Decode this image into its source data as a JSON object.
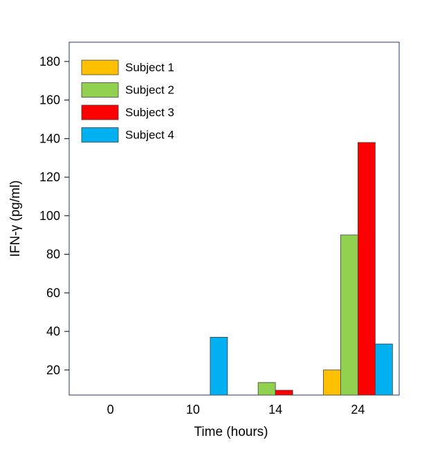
{
  "chart_data": {
    "type": "bar",
    "title": "",
    "xlabel": "Time (hours)",
    "ylabel": "IFN-γ (pg/ml)",
    "categories": [
      "0",
      "10",
      "14",
      "24"
    ],
    "ylim": [
      7,
      190
    ],
    "yticks": [
      20,
      40,
      60,
      80,
      100,
      120,
      140,
      160,
      180
    ],
    "grid": false,
    "legend_position": "top-left",
    "series": [
      {
        "name": "Subject 1",
        "color": "#FFC000",
        "values": [
          null,
          null,
          null,
          20
        ]
      },
      {
        "name": "Subject 2",
        "color": "#92D050",
        "values": [
          null,
          null,
          13.5,
          90
        ]
      },
      {
        "name": "Subject 3",
        "color": "#FF0000",
        "values": [
          null,
          null,
          9.5,
          138
        ]
      },
      {
        "name": "Subject 4",
        "color": "#00B0F0",
        "values": [
          null,
          37,
          null,
          33.5
        ]
      }
    ]
  }
}
